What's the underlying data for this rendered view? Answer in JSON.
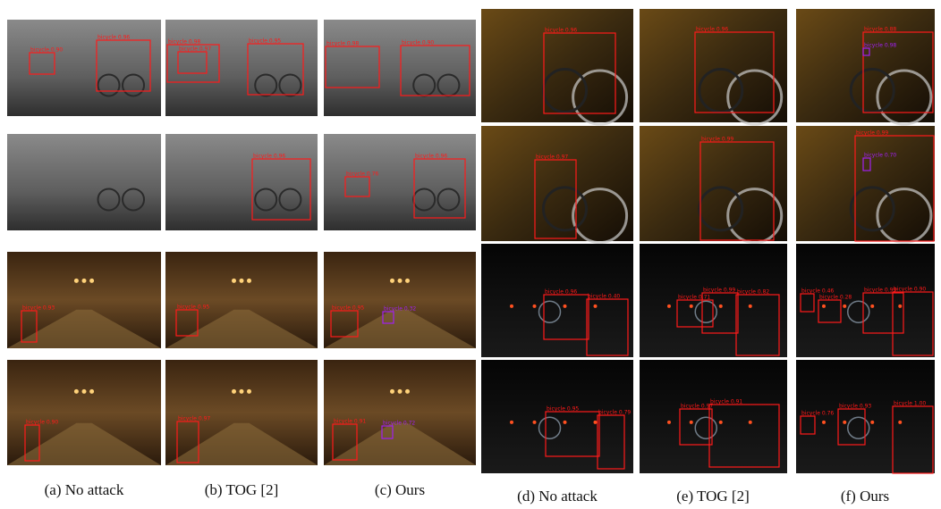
{
  "captions": [
    "(a) No attack",
    "(b) TOG [2]",
    "(c) Ours",
    "(d) No attack",
    "(e) TOG [2]",
    "(f) Ours"
  ],
  "panels": [
    {
      "boxes": [
        {
          "label": "bicycle 0.90"
        },
        {
          "label": "bicycle 0.96"
        }
      ]
    },
    {
      "boxes": [
        {
          "label": "bicycle 0.98"
        },
        {
          "label": "bicycle 0.97"
        },
        {
          "label": "bicycle 0.95"
        }
      ]
    },
    {
      "boxes": [
        {
          "label": "bicycle 0.98"
        },
        {
          "label": "bicycle 0.90"
        }
      ]
    },
    {
      "boxes": []
    },
    {
      "boxes": [
        {
          "label": "bicycle 0.96"
        }
      ]
    },
    {
      "boxes": [
        {
          "label": "bicycle 0.76"
        },
        {
          "label": "bicycle 0.96"
        }
      ]
    },
    {
      "boxes": [
        {
          "label": "bicycle 0.93"
        }
      ]
    },
    {
      "boxes": [
        {
          "label": "bicycle 0.95"
        }
      ]
    },
    {
      "boxes": [
        {
          "label": "bicycle 0.95"
        },
        {
          "label": "bicycle 0.32"
        }
      ]
    },
    {
      "boxes": [
        {
          "label": "bicycle 0.90"
        }
      ]
    },
    {
      "boxes": [
        {
          "label": "bicycle 0.97"
        }
      ]
    },
    {
      "boxes": [
        {
          "label": "bicycle 0.91"
        },
        {
          "label": "bicycle 0.72"
        }
      ]
    },
    {
      "boxes": [
        {
          "label": "bicycle 0.96"
        }
      ]
    },
    {
      "boxes": [
        {
          "label": "bicycle 0.96"
        }
      ]
    },
    {
      "boxes": [
        {
          "label": "bicycle 0.88"
        },
        {
          "label": "bicycle 0.98"
        }
      ]
    },
    {
      "boxes": [
        {
          "label": "bicycle 0.97"
        }
      ]
    },
    {
      "boxes": [
        {
          "label": "bicycle 0.99"
        }
      ]
    },
    {
      "boxes": [
        {
          "label": "bicycle 0.99"
        },
        {
          "label": "bicycle 0.70"
        }
      ]
    },
    {
      "boxes": [
        {
          "label": "bicycle 0.96"
        },
        {
          "label": "bicycle 0.40"
        }
      ]
    },
    {
      "boxes": [
        {
          "label": "bicycle 0.71"
        },
        {
          "label": "bicycle 0.99"
        },
        {
          "label": "bicycle 0.82"
        }
      ]
    },
    {
      "boxes": [
        {
          "label": "bicycle 0.46"
        },
        {
          "label": "bicycle 0.28"
        },
        {
          "label": "bicycle 0.99"
        },
        {
          "label": "bicycle 0.90"
        }
      ]
    },
    {
      "boxes": [
        {
          "label": "bicycle 0.95"
        },
        {
          "label": "bicycle 0.79"
        }
      ]
    },
    {
      "boxes": [
        {
          "label": "bicycle 0.97"
        },
        {
          "label": "bicycle 0.91"
        }
      ]
    },
    {
      "boxes": [
        {
          "label": "bicycle 0.76"
        },
        {
          "label": "bicycle 0.93"
        },
        {
          "label": "bicycle 1.00"
        }
      ]
    }
  ]
}
